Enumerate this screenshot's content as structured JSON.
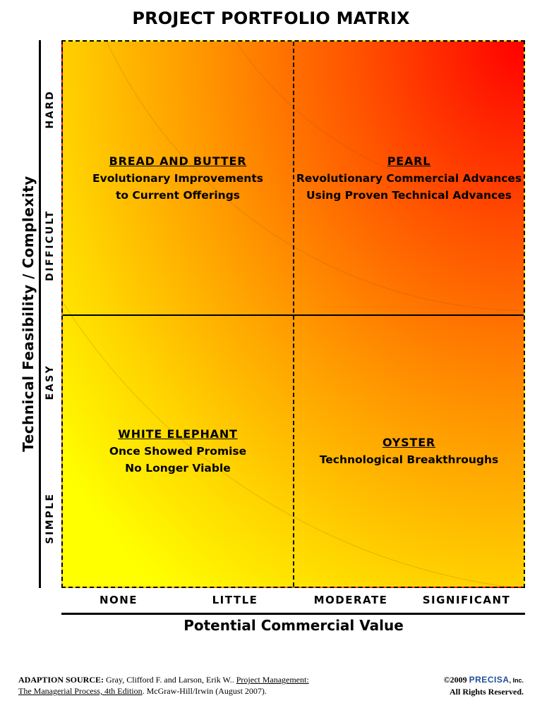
{
  "title": "PROJECT PORTFOLIO MATRIX",
  "colors": {
    "gradient_low": "#ffff00",
    "gradient_mid": "#ff9800",
    "gradient_high": "#ff0000"
  },
  "y_axis": {
    "label": "Technical Feasibility / Complexity",
    "ticks": [
      "HARD",
      "DIFFICULT",
      "EASY",
      "SIMPLE"
    ]
  },
  "x_axis": {
    "label": "Potential Commercial Value",
    "ticks": [
      "NONE",
      "LITTLE",
      "MODERATE",
      "SIGNIFICANT"
    ]
  },
  "quadrants": {
    "top_left": {
      "title": "BREAD AND BUTTER",
      "lines": [
        "Evolutionary Improvements",
        "to Current Offerings"
      ]
    },
    "top_right": {
      "title": "PEARL",
      "lines": [
        "Revolutionary Commercial Advances",
        "Using Proven Technical Advances"
      ]
    },
    "bottom_left": {
      "title": "WHITE ELEPHANT",
      "lines": [
        "Once Showed Promise",
        "No Longer Viable"
      ]
    },
    "bottom_right": {
      "title": "OYSTER",
      "lines": [
        "Technological Breakthroughs"
      ]
    }
  },
  "footer": {
    "source_prefix": "ADAPTION SOURCE:",
    "source_authors": " Gray, Clifford F. and Larson, Erik W..  ",
    "source_book_a": "Project Management:",
    "source_book_b": "The Managerial Process, 4th Edition",
    "source_publisher": ".  McGraw-Hill/Irwin (August 2007).",
    "copyright_year": "©2009 ",
    "brand": "PRECISA",
    "brand_suffix": ", Inc.",
    "rights": "All Rights Reserved."
  }
}
